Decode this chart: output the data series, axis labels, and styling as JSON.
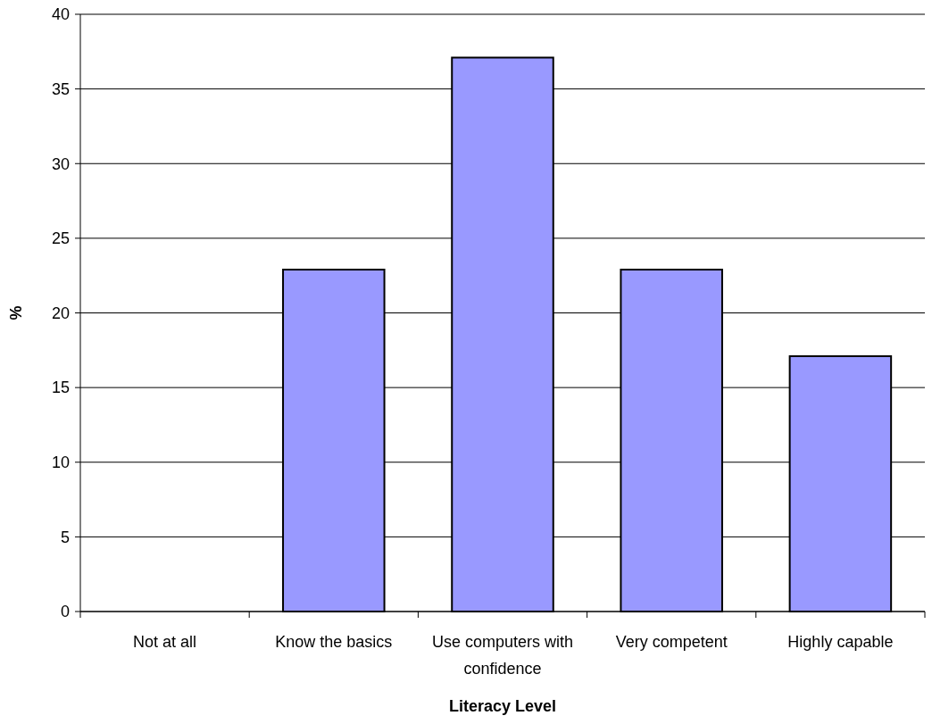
{
  "chart_data": {
    "type": "bar",
    "xlabel": "Literacy Level",
    "ylabel": "%",
    "categories": [
      "Not at all",
      "Know the basics",
      "Use computers with confidence",
      "Very competent",
      "Highly capable"
    ],
    "values": [
      0,
      22.9,
      37.1,
      22.9,
      17.1
    ],
    "color": "#9999ff",
    "ylim": [
      0,
      40
    ],
    "yticks": [
      0,
      5,
      10,
      15,
      20,
      25,
      30,
      35,
      40
    ],
    "grid": "y"
  }
}
